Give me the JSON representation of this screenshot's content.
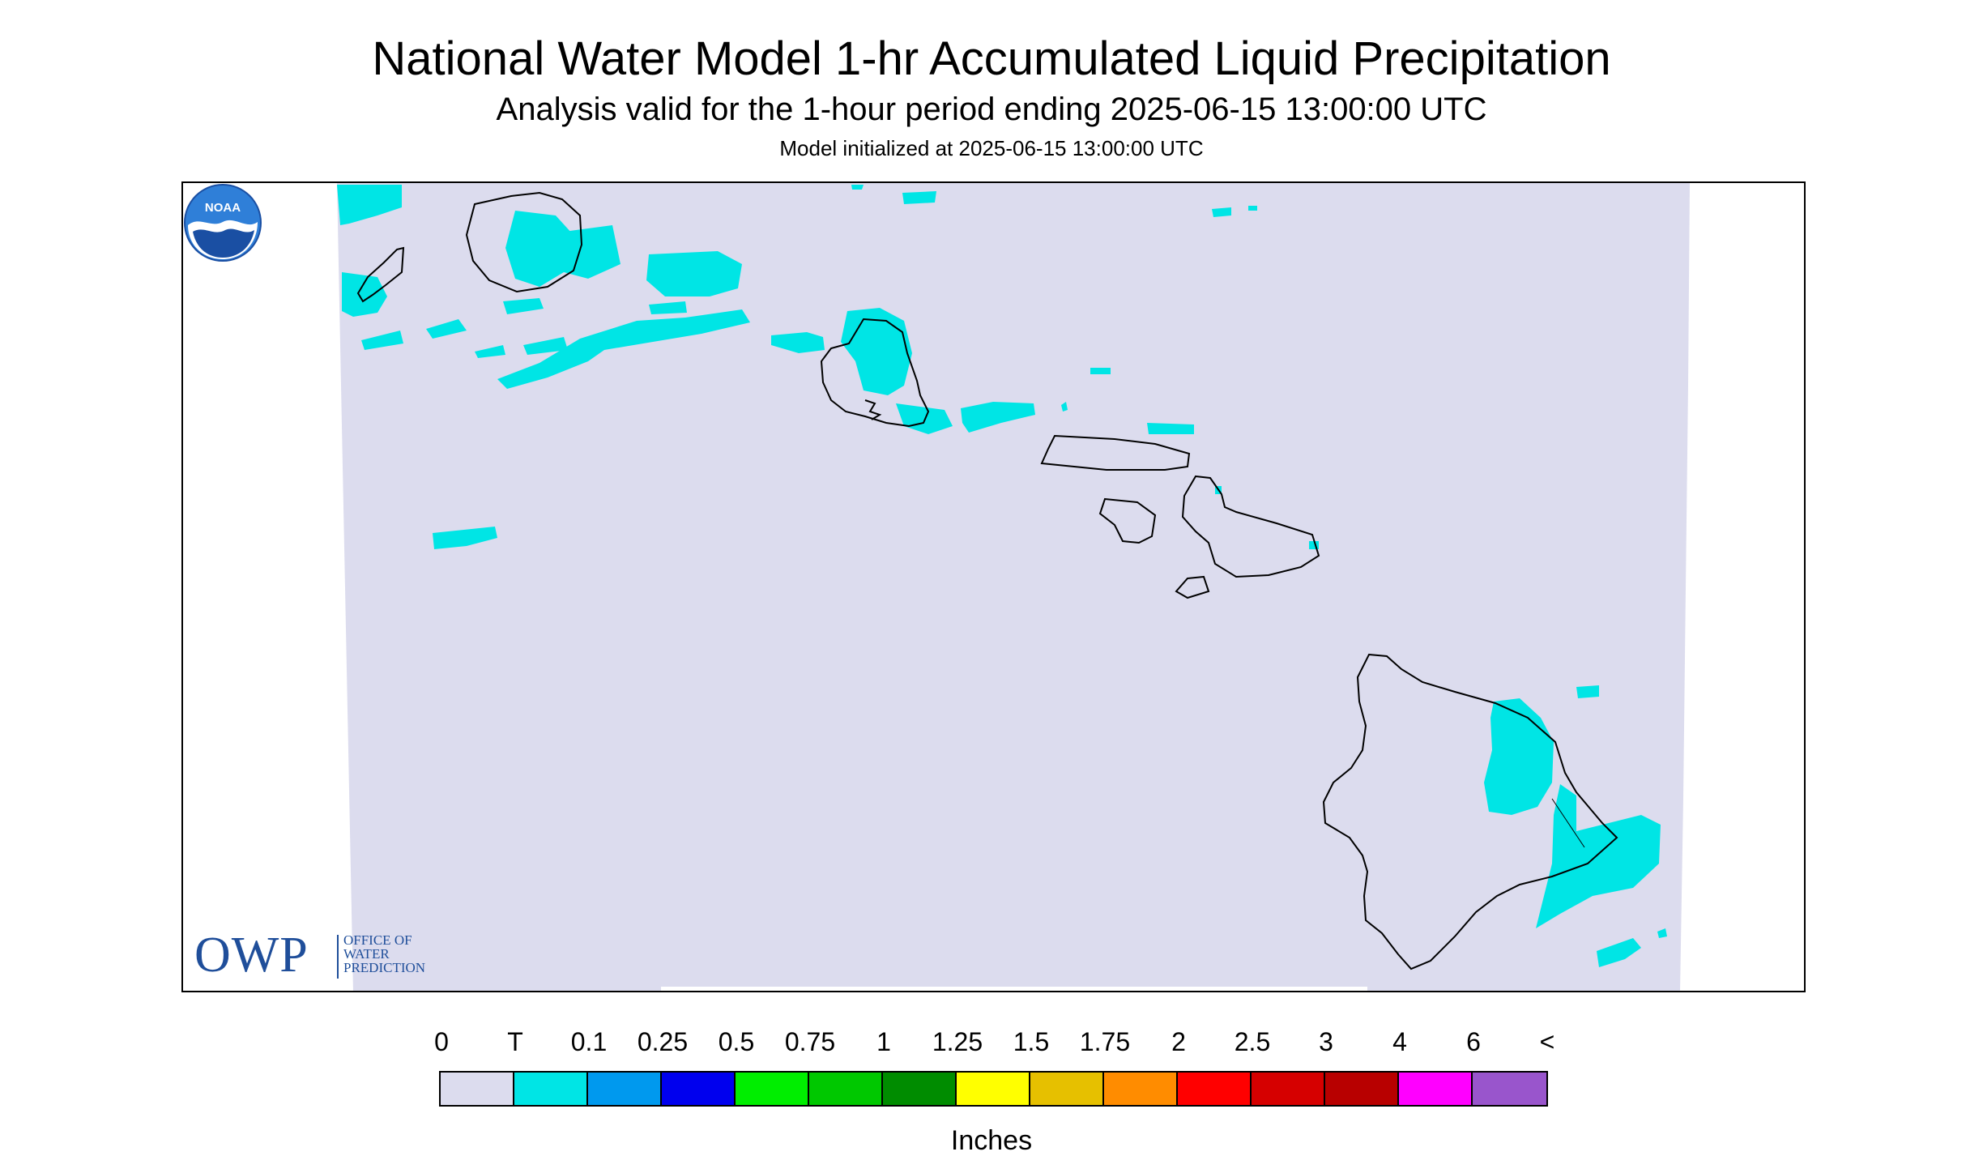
{
  "header": {
    "title": "National Water Model 1-hr Accumulated Liquid Precipitation",
    "subtitle": "Analysis valid for the 1-hour period ending 2025-06-15 13:00:00 UTC",
    "init_line": "Model initialized at 2025-06-15 13:00:00 UTC"
  },
  "map": {
    "background_color": "#ffffff",
    "domain_color": "#dcdcee",
    "precip_color": "#00e5e5",
    "coastline_color": "#000000",
    "islands": [
      "Niihau",
      "Kauai",
      "Oahu",
      "Molokai",
      "Lanai",
      "Maui",
      "Kahoolawe",
      "Hawaii"
    ]
  },
  "logos": {
    "owp_big": "OWP",
    "owp_line1": "OFFICE OF",
    "owp_line2": "WATER",
    "owp_line3": "PREDICTION",
    "noaa": "NOAA"
  },
  "legend": {
    "labels": [
      "0",
      "T",
      "0.1",
      "0.25",
      "0.5",
      "0.75",
      "1",
      "1.25",
      "1.5",
      "1.75",
      "2",
      "2.5",
      "3",
      "4",
      "6",
      "<"
    ],
    "colors": [
      "#dcdcee",
      "#00e5e5",
      "#0099ee",
      "#0000ee",
      "#00ee00",
      "#00c800",
      "#008c00",
      "#ffff00",
      "#e6c000",
      "#ff8c00",
      "#ff0000",
      "#d60000",
      "#b80000",
      "#ff00ff",
      "#9955cc"
    ],
    "units": "Inches"
  }
}
